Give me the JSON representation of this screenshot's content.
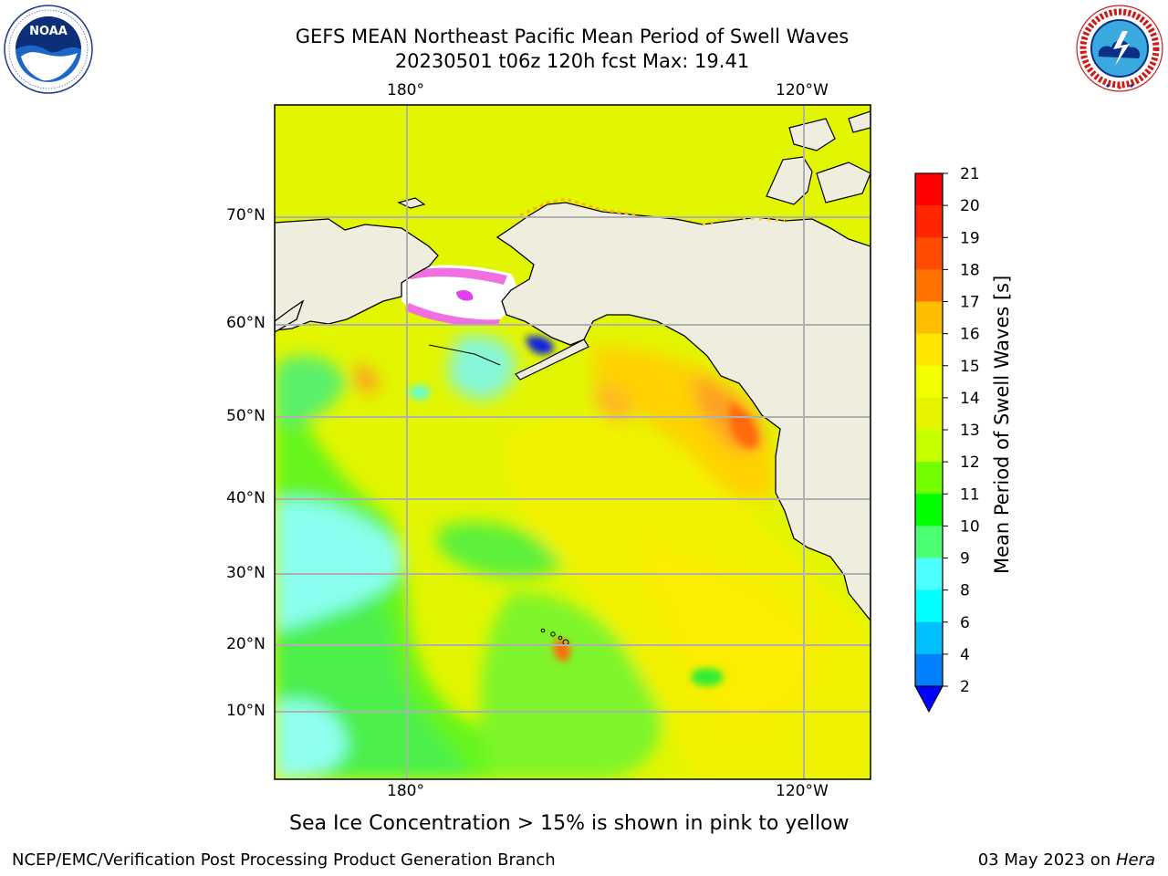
{
  "header": {
    "title_line1": "GEFS MEAN Northeast Pacific Mean Period of Swell Waves",
    "title_line2": "20230501 t06z 120h fcst   Max: 19.41"
  },
  "logos": {
    "left": {
      "name": "NOAA",
      "ring_text": "NATIONAL OCEANIC AND ATMOSPHERIC ADMINISTRATION · U.S. DEPARTMENT OF COMMERCE"
    },
    "right": {
      "ring_text": "NATIONAL WEATHER SERVICE"
    }
  },
  "map": {
    "top_lon_labels": [
      "180°",
      "120°W"
    ],
    "bottom_lon_labels": [
      "180°",
      "120°W"
    ],
    "lat_labels": [
      "70°N",
      "60°N",
      "50°N",
      "40°N",
      "30°N",
      "20°N",
      "10°N"
    ],
    "colors": {
      "land": "#efedde",
      "grid": "#b0b0b0",
      "coast": "#000000"
    },
    "dominant_feature": "swell period field, ~9–17 s; longest periods (orange-red) off Pacific Northwest coast; shortest (cyan) in western subtropics and near ice edge; blue minimum in Bristol Bay"
  },
  "colorbar": {
    "label": "Mean Period of Swell Waves [s]",
    "ticks": [
      "21",
      "20",
      "19",
      "18",
      "17",
      "16",
      "15",
      "14",
      "13",
      "12",
      "11",
      "10",
      "9",
      "8",
      "6",
      "4",
      "2"
    ],
    "colors": [
      "#ff0000",
      "#ff2600",
      "#ff4c00",
      "#ff7200",
      "#ff9900",
      "#ffbf00",
      "#ffe600",
      "#f2ff00",
      "#e5f500",
      "#c6ff00",
      "#73ff00",
      "#00ff00",
      "#4dff73",
      "#99ffff",
      "#4dffff",
      "#00ffff",
      "#00bfff",
      "#0080ff",
      "#0000ff"
    ]
  },
  "footer": {
    "note": "Sea Ice Concentration > 15% is shown in pink to yellow",
    "left": "NCEP/EMC/Verification Post Processing Product Generation Branch",
    "date": "03 May 2023 on ",
    "machine": "Hera"
  }
}
